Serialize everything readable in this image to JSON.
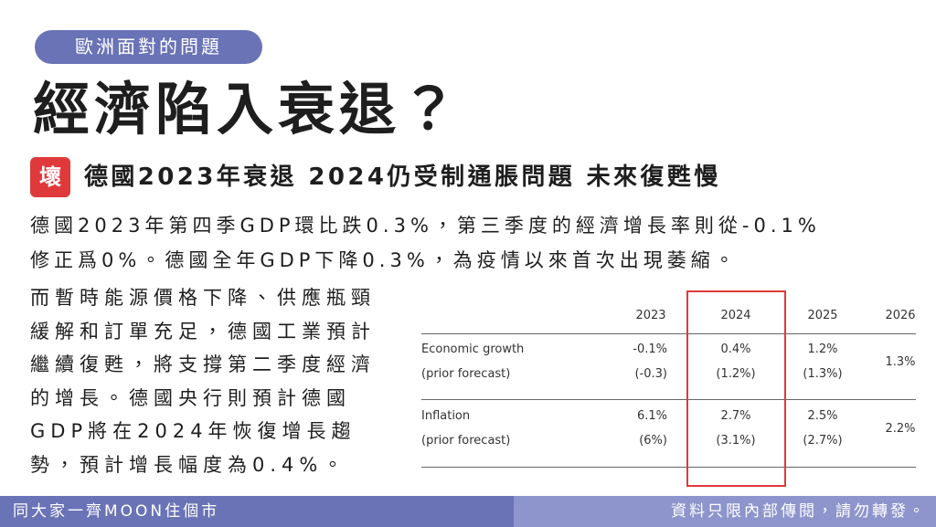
{
  "tag": "歐洲面對的問題",
  "title": "經濟陷入衰退？",
  "headline": {
    "badge": "壞",
    "text": "德國2023年衰退 2024仍受制通脹問題 未來復甦慢"
  },
  "intro": [
    "德國2023年第四季GDP環比跌0.3%，第三季度的經濟增長率則從-0.1%",
    "修正爲0%。德國全年GDP下降0.3%，為疫情以來首次出現萎縮。"
  ],
  "body": [
    "而暫時能源價格下降、供應瓶頸",
    "緩解和訂單充足，德國工業預計",
    "繼續復甦，將支撐第二季度經濟",
    "的增長。德國央行則預計德國",
    "GDP將在2024年恢復增長趨",
    "勢，預計增長幅度為0.4%。"
  ],
  "table": {
    "columns": [
      "2023",
      "2024",
      "2025",
      "2026"
    ],
    "rows": [
      {
        "label": "Economic growth",
        "values": [
          "-0.1%",
          "0.4%",
          "1.2%"
        ],
        "prior_label": "(prior forecast)",
        "prior": [
          "(-0.3)",
          "(1.2%)",
          "(1.3%)"
        ],
        "last": "1.3%"
      },
      {
        "label": "Inflation",
        "values": [
          "6.1%",
          "2.7%",
          "2.5%"
        ],
        "prior_label": "(prior forecast)",
        "prior": [
          "(6%)",
          "(3.1%)",
          "(2.7%)"
        ],
        "last": "2.2%"
      }
    ]
  },
  "footer": {
    "left": "同大家一齊MOON住個市",
    "right": "資料只限內部傳閱，請勿轉發。"
  }
}
